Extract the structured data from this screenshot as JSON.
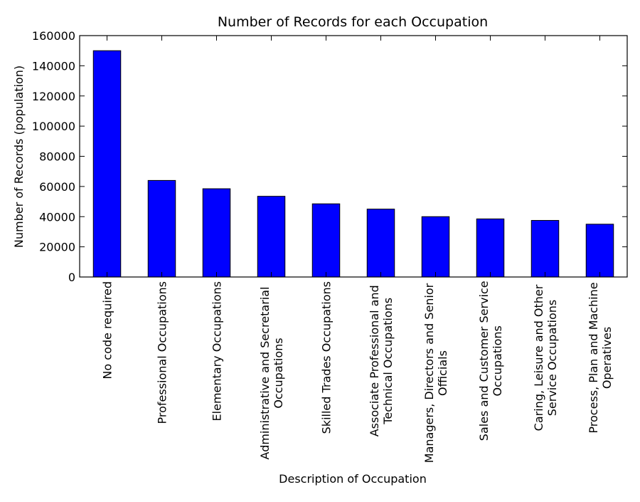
{
  "chart_data": {
    "type": "bar",
    "title": "Number of Records for each Occupation",
    "xlabel": "Description of Occupation",
    "ylabel": "Number of Records (population)",
    "ylim": [
      0,
      160000
    ],
    "yticks": [
      0,
      20000,
      40000,
      60000,
      80000,
      100000,
      120000,
      140000,
      160000
    ],
    "grid": false,
    "bar_color": "#0000ff",
    "categories": [
      "No code required",
      "Professional Occupations",
      "Elementary Occupations",
      "Administrative and Secretarial Occupations",
      "Skilled Trades Occupations",
      "Associate Professional and Technical Occupations",
      "Managers, Directors and Senior Officials",
      "Sales and Customer Service Occupations",
      "Caring, Leisure and Other Service Occupations",
      "Process, Plan and Machine Operatives"
    ],
    "category_lines": [
      [
        "No code required"
      ],
      [
        "Professional Occupations"
      ],
      [
        "Elementary Occupations"
      ],
      [
        "Administrative and Secretarial",
        "Occupations"
      ],
      [
        "Skilled Trades Occupations"
      ],
      [
        "Associate Professional and",
        "Technical Occupations"
      ],
      [
        "Managers, Directors and Senior",
        "Officials"
      ],
      [
        "Sales and Customer Service",
        "Occupations"
      ],
      [
        "Caring, Leisure and Other",
        "Service Occupations"
      ],
      [
        "Process, Plan and Machine",
        "Operatives"
      ]
    ],
    "values": [
      150000,
      64000,
      58500,
      53500,
      48500,
      45000,
      40000,
      38500,
      37500,
      35000
    ]
  }
}
